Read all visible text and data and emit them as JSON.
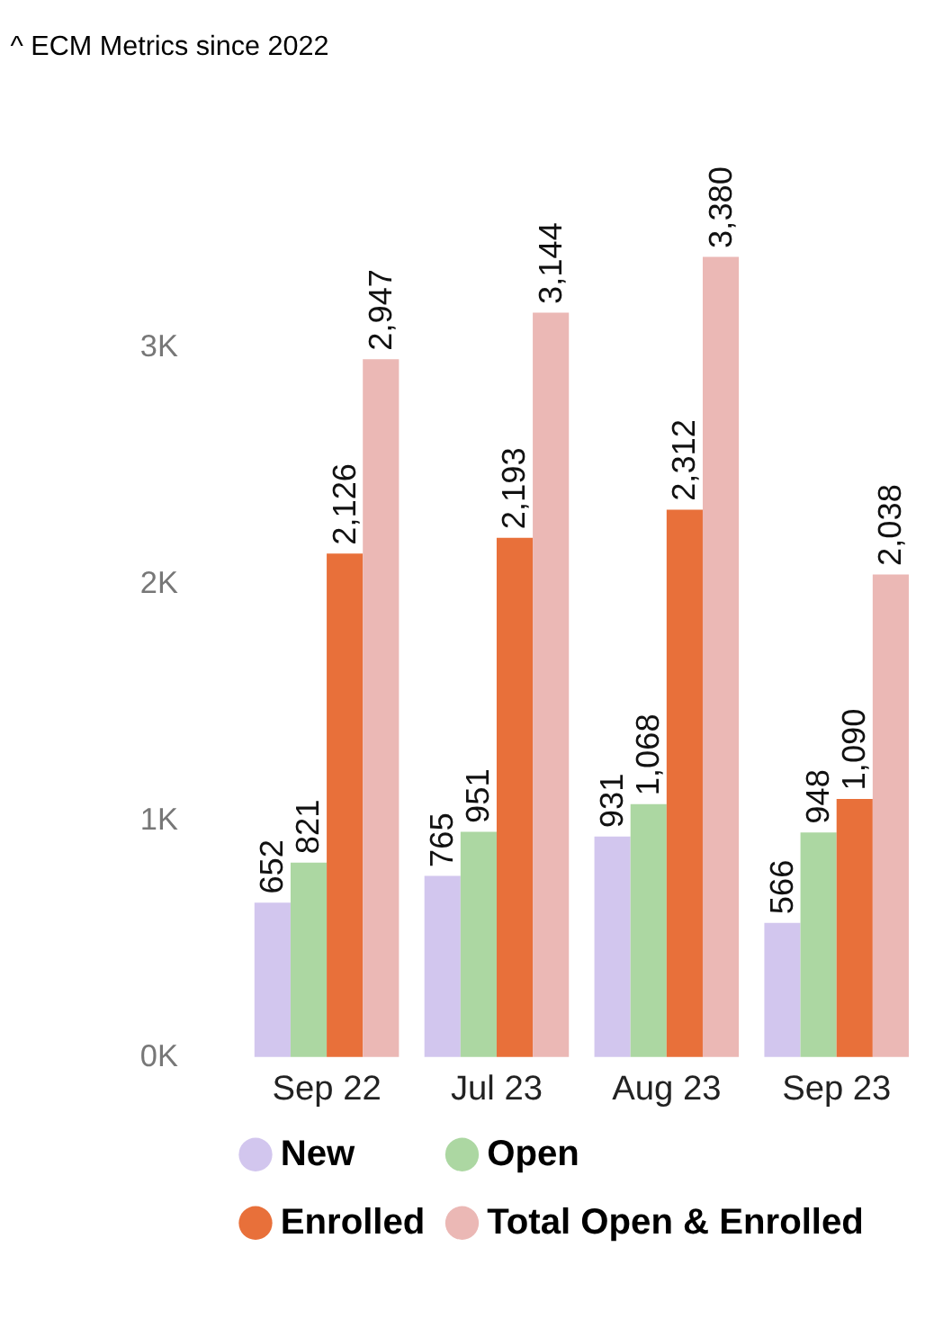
{
  "chart_data": {
    "type": "bar",
    "title": "^ ECM Metrics since 2022",
    "categories": [
      "Sep 22",
      "Jul 23",
      "Aug 23",
      "Sep 23"
    ],
    "series": [
      {
        "name": "New",
        "color": "#d2c6ee",
        "values": [
          652,
          765,
          931,
          566
        ],
        "value_labels": [
          "652",
          "765",
          "931",
          "566"
        ]
      },
      {
        "name": "Open",
        "color": "#acd7a2",
        "values": [
          821,
          951,
          1068,
          948
        ],
        "value_labels": [
          "821",
          "951",
          "1,068",
          "948"
        ]
      },
      {
        "name": "Enrolled",
        "color": "#e8703a",
        "values": [
          2126,
          2193,
          2312,
          1090
        ],
        "value_labels": [
          "2,126",
          "2,193",
          "2,312",
          "1,090"
        ]
      },
      {
        "name": "Total Open & Enrolled",
        "color": "#ebb8b5",
        "values": [
          2947,
          3144,
          3380,
          2038
        ],
        "value_labels": [
          "2,947",
          "3,144",
          "3,380",
          "2,038"
        ]
      }
    ],
    "ylim": [
      0,
      3380
    ],
    "yticks": [
      {
        "value": 0,
        "label": "0K"
      },
      {
        "value": 1000,
        "label": "1K"
      },
      {
        "value": 2000,
        "label": "2K"
      },
      {
        "value": 3000,
        "label": "3K"
      }
    ],
    "grid": false,
    "legend": "bottom"
  }
}
